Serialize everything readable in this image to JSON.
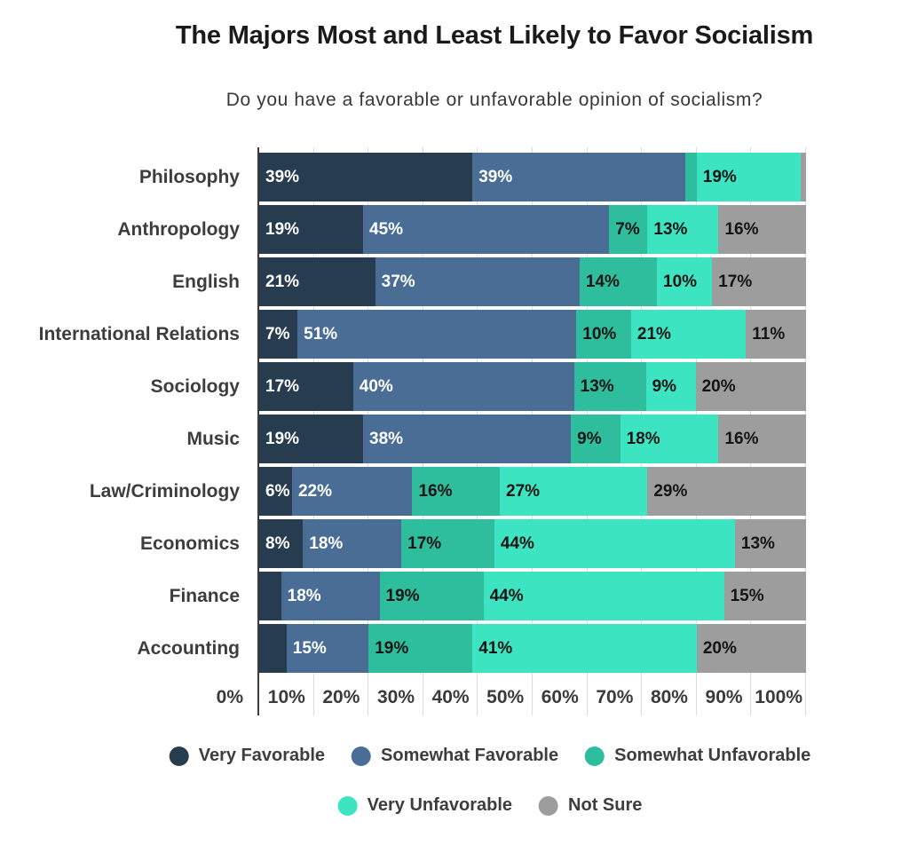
{
  "chart_data": {
    "type": "bar",
    "stacked": true,
    "orientation": "horizontal",
    "title": "The Majors Most and Least Likely to Favor Socialism",
    "subtitle": "Do you have a favorable or unfavorable opinion of socialism?",
    "categories": [
      "Philosophy",
      "Anthropology",
      "English",
      "International Relations",
      "Sociology",
      "Music",
      "Law/Criminology",
      "Economics",
      "Finance",
      "Accounting"
    ],
    "series": [
      {
        "name": "Very Favorable",
        "color": "#283C50",
        "label_color": "#ffffff",
        "values": [
          39,
          19,
          21,
          7,
          17,
          19,
          6,
          8,
          4,
          5
        ],
        "show_label": [
          true,
          true,
          true,
          true,
          true,
          true,
          true,
          true,
          false,
          false
        ]
      },
      {
        "name": "Somewhat Favorable",
        "color": "#4A6D96",
        "label_color": "#ffffff",
        "values": [
          39,
          45,
          37,
          51,
          40,
          38,
          22,
          18,
          18,
          15
        ],
        "show_label": [
          true,
          true,
          true,
          true,
          true,
          true,
          true,
          true,
          true,
          true
        ]
      },
      {
        "name": "Somewhat Unfavorable",
        "color": "#2EBD9D",
        "label_color": "#141414",
        "values": [
          2,
          7,
          14,
          10,
          13,
          9,
          16,
          17,
          19,
          19
        ],
        "show_label": [
          false,
          true,
          true,
          true,
          true,
          true,
          true,
          true,
          true,
          true
        ]
      },
      {
        "name": "Very Unfavorable",
        "color": "#3DE4C2",
        "label_color": "#141414",
        "values": [
          19,
          13,
          10,
          21,
          9,
          18,
          27,
          44,
          44,
          41
        ],
        "show_label": [
          true,
          true,
          true,
          true,
          true,
          true,
          true,
          true,
          true,
          true
        ]
      },
      {
        "name": "Not Sure",
        "color": "#9D9D9D",
        "label_color": "#141414",
        "values": [
          1,
          16,
          17,
          11,
          20,
          16,
          29,
          13,
          15,
          20
        ],
        "show_label": [
          false,
          true,
          true,
          true,
          true,
          true,
          true,
          true,
          true,
          true
        ]
      }
    ],
    "x_ticks": [
      "0%",
      "10%",
      "20%",
      "30%",
      "40%",
      "50%",
      "60%",
      "70%",
      "80%",
      "90%",
      "100%"
    ],
    "xlim": [
      0,
      100
    ],
    "grid": true,
    "legend_position": "bottom",
    "legend_rows": [
      [
        "Very Favorable",
        "Somewhat Favorable",
        "Somewhat Unfavorable"
      ],
      [
        "Very Unfavorable",
        "Not Sure"
      ]
    ]
  }
}
